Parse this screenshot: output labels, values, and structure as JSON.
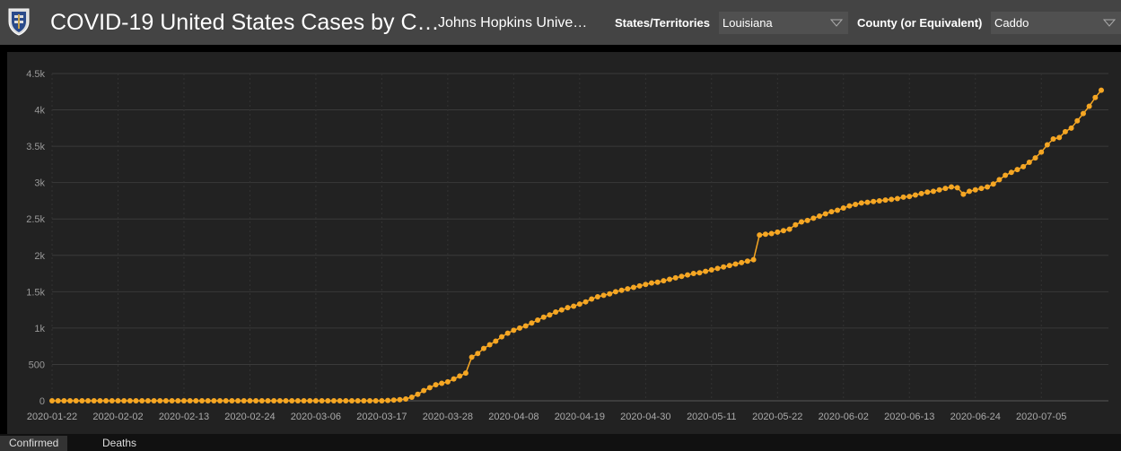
{
  "header": {
    "title": "COVID-19 United States Cases by C…",
    "subtitle": "Johns Hopkins Unive…",
    "state_filter": {
      "label": "States/Territories",
      "value": "Louisiana"
    },
    "county_filter": {
      "label": "County (or Equivalent)",
      "value": "Caddo"
    }
  },
  "tabs": [
    {
      "label": "Confirmed",
      "active": true
    },
    {
      "label": "Deaths",
      "active": false
    }
  ],
  "colors": {
    "series": "#f5a623",
    "background": "#222222",
    "header": "#444444"
  },
  "chart_data": {
    "type": "line",
    "title": "",
    "xlabel": "",
    "ylabel": "",
    "ylim": [
      0,
      4500
    ],
    "yticks": [
      0,
      500,
      1000,
      1500,
      2000,
      2500,
      3000,
      3500,
      4000,
      4500
    ],
    "ytick_labels": [
      "0",
      "500",
      "1k",
      "1.5k",
      "2k",
      "2.5k",
      "3k",
      "3.5k",
      "4k",
      "4.5k"
    ],
    "xtick_labels": [
      "2020-01-22",
      "2020-02-02",
      "2020-02-13",
      "2020-02-24",
      "2020-03-06",
      "2020-03-17",
      "2020-03-28",
      "2020-04-08",
      "2020-04-19",
      "2020-04-30",
      "2020-05-11",
      "2020-05-22",
      "2020-06-02",
      "2020-06-13",
      "2020-06-24",
      "2020-07-05"
    ],
    "grid": true,
    "x_start": "2020-01-22",
    "x_end": "2020-07-13",
    "series": [
      {
        "values": [
          0,
          0,
          0,
          0,
          0,
          0,
          0,
          0,
          0,
          0,
          0,
          0,
          0,
          0,
          0,
          0,
          0,
          0,
          0,
          0,
          0,
          0,
          0,
          0,
          0,
          0,
          0,
          0,
          0,
          0,
          0,
          0,
          0,
          0,
          0,
          0,
          0,
          0,
          0,
          0,
          0,
          0,
          0,
          0,
          0,
          0,
          0,
          0,
          0,
          0,
          0,
          0,
          0,
          0,
          0,
          0,
          5,
          10,
          15,
          25,
          50,
          90,
          140,
          180,
          220,
          240,
          260,
          300,
          340,
          380,
          600,
          650,
          720,
          770,
          820,
          880,
          930,
          970,
          1000,
          1030,
          1070,
          1110,
          1150,
          1180,
          1220,
          1250,
          1280,
          1300,
          1330,
          1360,
          1400,
          1430,
          1450,
          1470,
          1500,
          1520,
          1540,
          1560,
          1580,
          1600,
          1620,
          1630,
          1650,
          1670,
          1690,
          1710,
          1730,
          1750,
          1760,
          1780,
          1800,
          1820,
          1840,
          1860,
          1880,
          1900,
          1920,
          1940,
          2280,
          2290,
          2300,
          2320,
          2340,
          2360,
          2420,
          2460,
          2480,
          2510,
          2540,
          2570,
          2600,
          2620,
          2650,
          2680,
          2700,
          2720,
          2730,
          2740,
          2750,
          2760,
          2770,
          2780,
          2800,
          2810,
          2830,
          2850,
          2870,
          2880,
          2900,
          2920,
          2940,
          2930,
          2840,
          2880,
          2900,
          2920,
          2940,
          2980,
          3040,
          3100,
          3140,
          3180,
          3220,
          3280,
          3340,
          3420,
          3520,
          3600,
          3620,
          3700,
          3750,
          3850,
          3950,
          4050,
          4170,
          4270
        ]
      }
    ]
  }
}
